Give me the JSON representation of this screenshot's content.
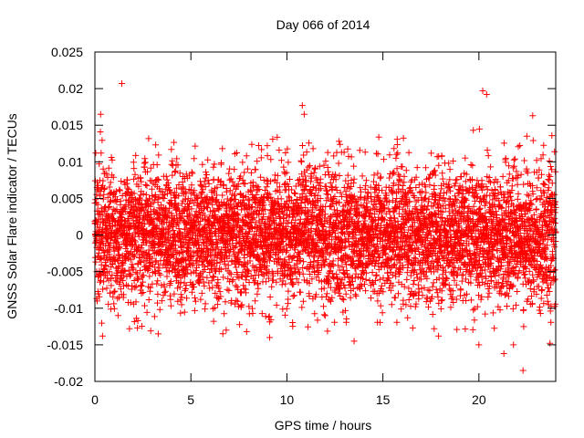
{
  "chart_data": {
    "type": "scatter",
    "title": "Day 066 of 2014",
    "xlabel": "GPS time / hours",
    "ylabel": "GNSS Solar Flare indicator / TECUs",
    "xlim": [
      0,
      24
    ],
    "ylim": [
      -0.02,
      0.025
    ],
    "x_ticks": [
      0,
      5,
      10,
      15,
      20
    ],
    "x_tick_labels": [
      "0",
      "5",
      "10",
      "15",
      "20"
    ],
    "y_ticks": [
      -0.02,
      -0.015,
      -0.01,
      -0.005,
      0,
      0.005,
      0.01,
      0.015,
      0.02,
      0.025
    ],
    "y_tick_labels": [
      "-0.02",
      "-0.015",
      "-0.01",
      "-0.005",
      "0",
      "0.005",
      "0.01",
      "0.015",
      "0.02",
      "0.025"
    ],
    "grid": false,
    "marker": "+",
    "marker_color": "#ff0000",
    "series": [
      {
        "name": "solar-flare-indicator",
        "sampling_interval_hours": 0.00833,
        "points_per_time_step": 2,
        "typical_std": 0.0045,
        "notable_points": [
          {
            "x": 1.4,
            "y": 0.0207
          },
          {
            "x": 0.3,
            "y": 0.0165
          },
          {
            "x": 10.8,
            "y": 0.0177
          },
          {
            "x": 10.9,
            "y": 0.0165
          },
          {
            "x": 20.2,
            "y": 0.0197
          },
          {
            "x": 20.4,
            "y": 0.0192
          },
          {
            "x": 22.8,
            "y": 0.0163
          },
          {
            "x": 22.5,
            "y": 0.0135
          },
          {
            "x": 22.3,
            "y": -0.0185
          },
          {
            "x": 21.3,
            "y": -0.0162
          },
          {
            "x": 20.0,
            "y": -0.015
          },
          {
            "x": 21.8,
            "y": -0.015
          },
          {
            "x": 23.7,
            "y": -0.0148
          },
          {
            "x": 13.5,
            "y": -0.0145
          },
          {
            "x": 9.1,
            "y": -0.014
          },
          {
            "x": 17.9,
            "y": -0.0138
          },
          {
            "x": 1.8,
            "y": -0.0128
          },
          {
            "x": 3.3,
            "y": -0.0135
          },
          {
            "x": 0.4,
            "y": -0.0138
          }
        ]
      }
    ]
  }
}
